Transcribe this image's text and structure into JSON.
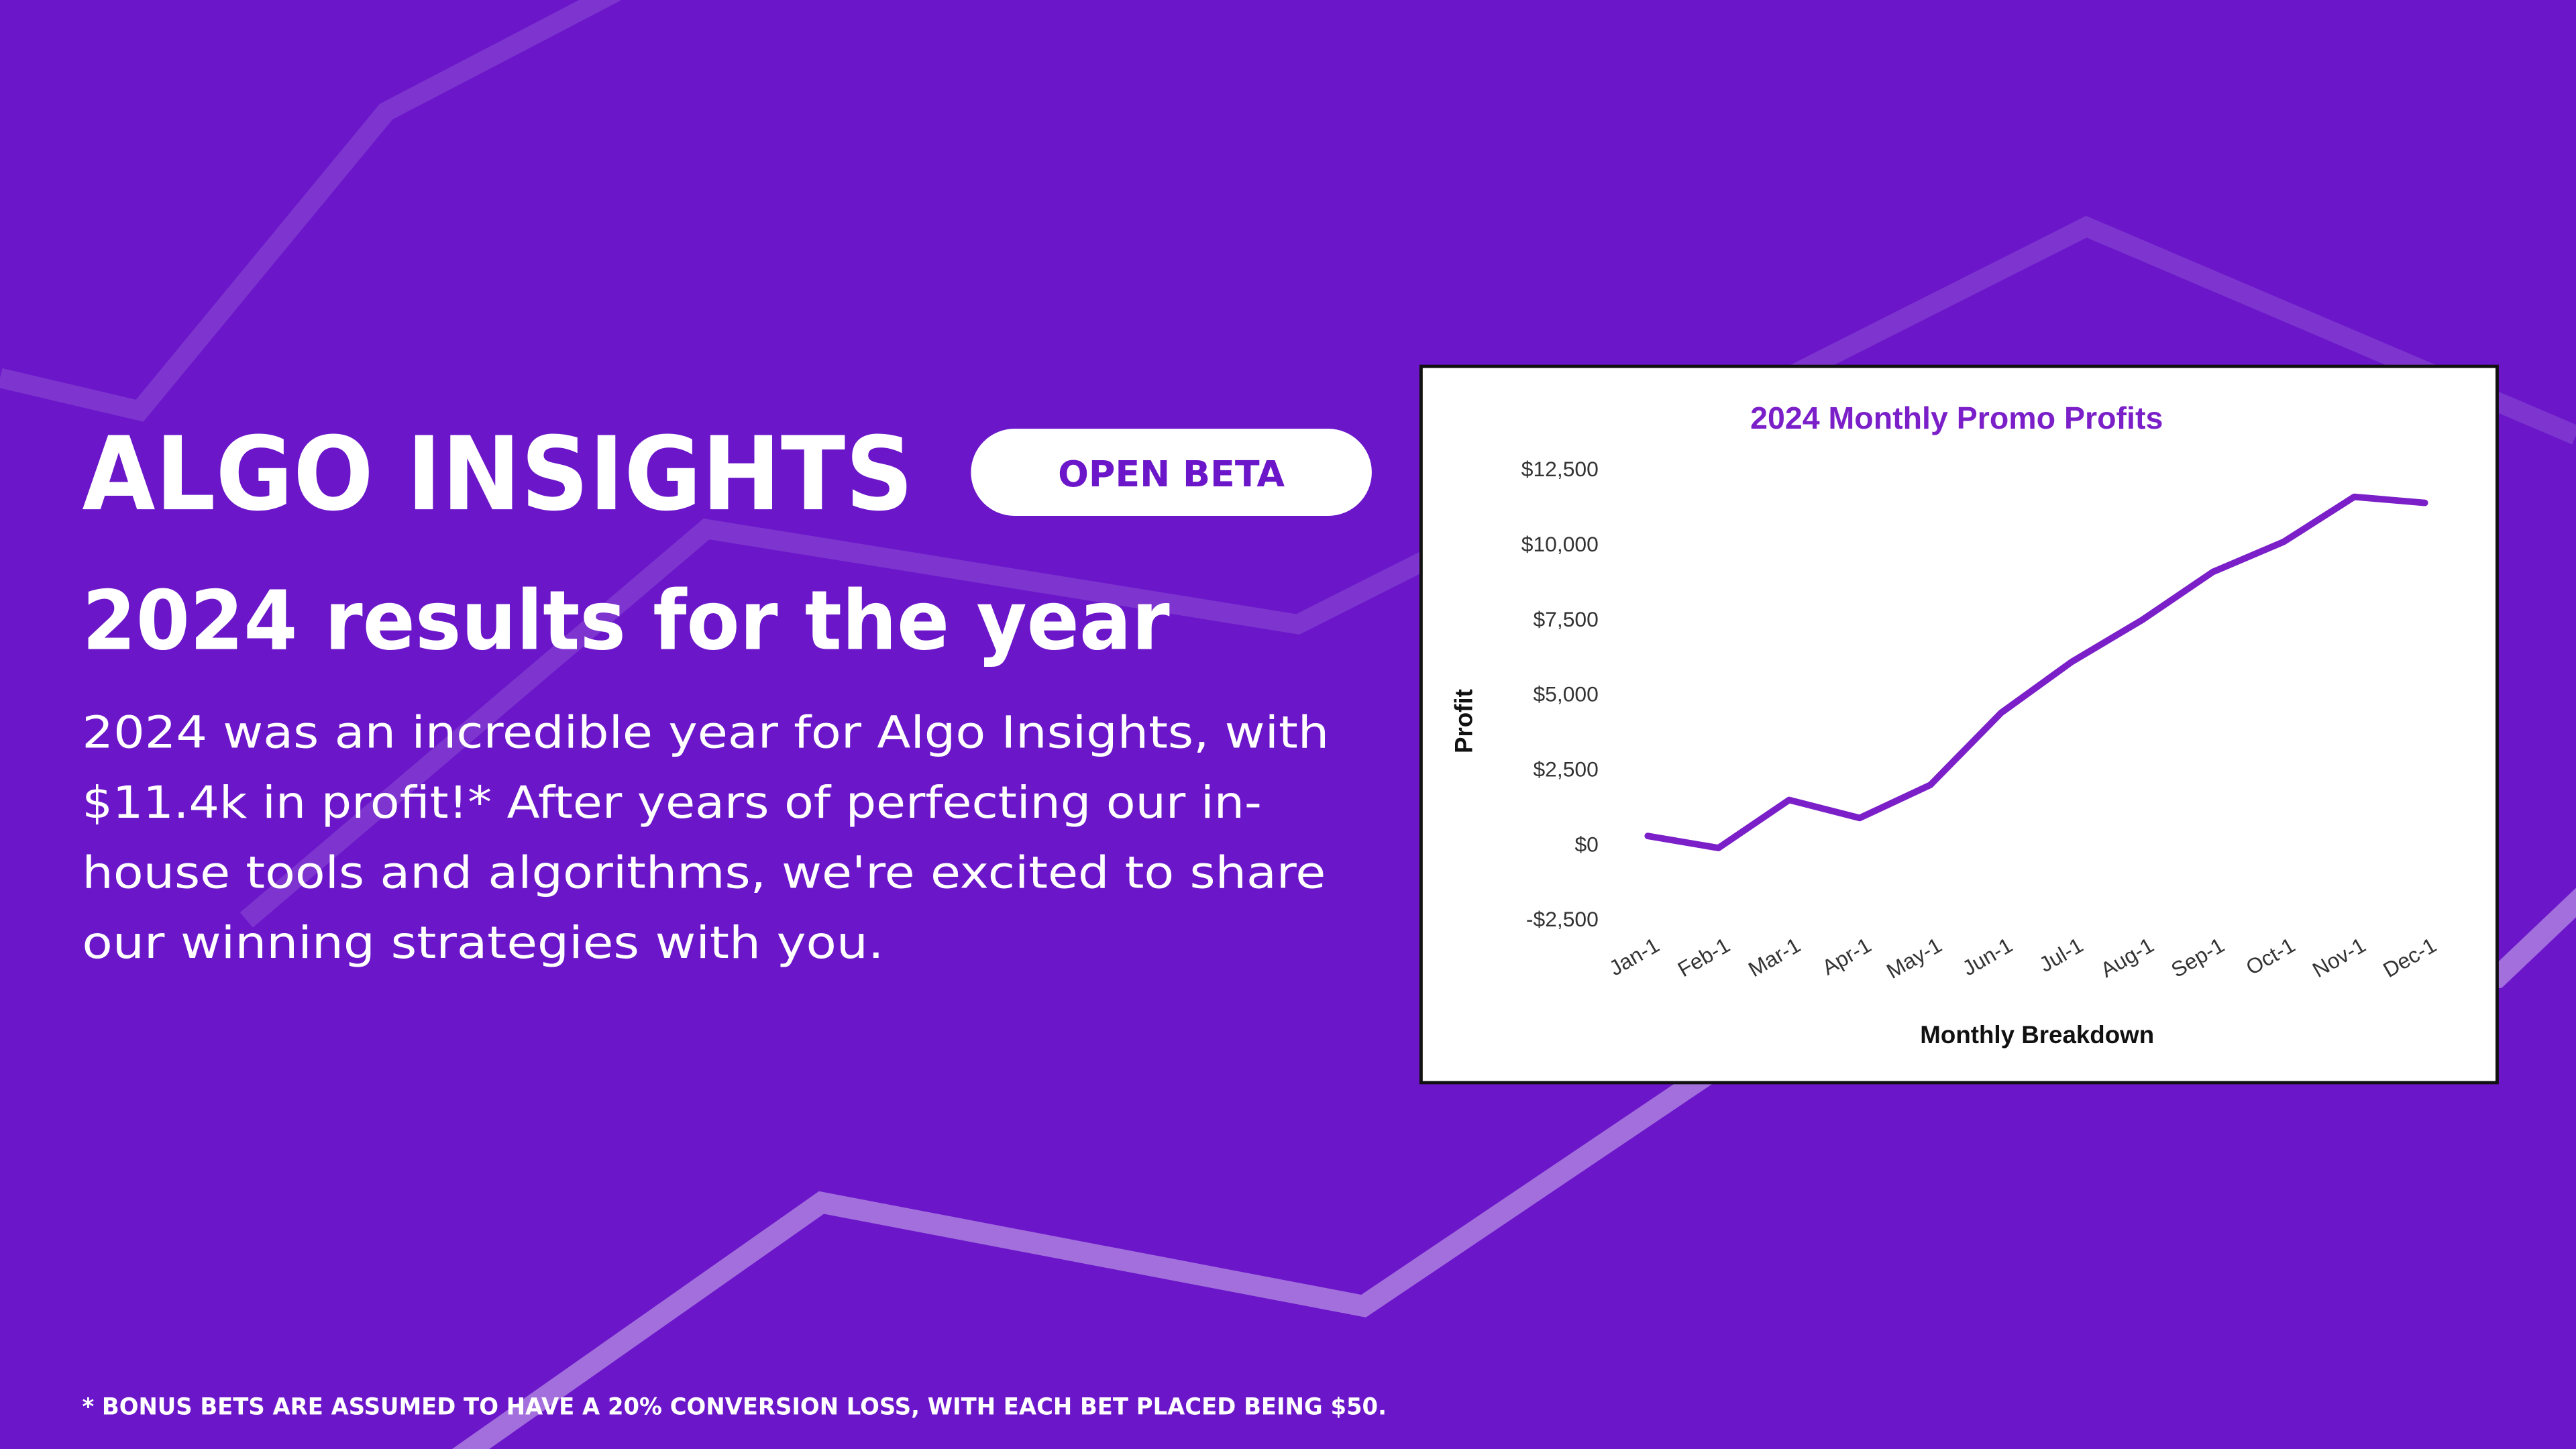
{
  "header": {
    "brand": "ALGO INSIGHTS",
    "badge": "OPEN BETA",
    "headline": "2024 results for the year"
  },
  "body_lines": [
    "2024 was an incredible year for Algo Insights, with",
    "$11.4k in profit!* After years of perfecting our in-",
    "house tools and algorithms, we're excited to share",
    "our winning strategies with you."
  ],
  "footnote": "* BONUS BETS ARE ASSUMED TO HAVE A 20% CONVERSION LOSS, WITH EACH BET PLACED BEING $50.",
  "chart_data": {
    "type": "line",
    "title": "2024 Monthly Promo Profits",
    "x_label": "Monthly Breakdown",
    "y_label": "Profit",
    "categories": [
      "Jan-1",
      "Feb-1",
      "Mar-1",
      "Apr-1",
      "May-1",
      "Jun-1",
      "Jul-1",
      "Aug-1",
      "Sep-1",
      "Oct-1",
      "Nov-1",
      "Dec-1"
    ],
    "series": [
      {
        "name": "Profit",
        "color": "#7b1fc9",
        "values": [
          300,
          -100,
          1500,
          900,
          2000,
          4400,
          6100,
          7500,
          9100,
          10100,
          11600,
          11400
        ]
      }
    ],
    "ylim": [
      -2500,
      12500
    ],
    "yticks": [
      {
        "value": -2500,
        "label": "-$2,500"
      },
      {
        "value": 0,
        "label": "$0"
      },
      {
        "value": 2500,
        "label": "$2,500"
      },
      {
        "value": 5000,
        "label": "$5,000"
      },
      {
        "value": 7500,
        "label": "$7,500"
      },
      {
        "value": 10000,
        "label": "$10,000"
      },
      {
        "value": 12500,
        "label": "$12,500"
      }
    ],
    "grid": false,
    "legend": false
  }
}
